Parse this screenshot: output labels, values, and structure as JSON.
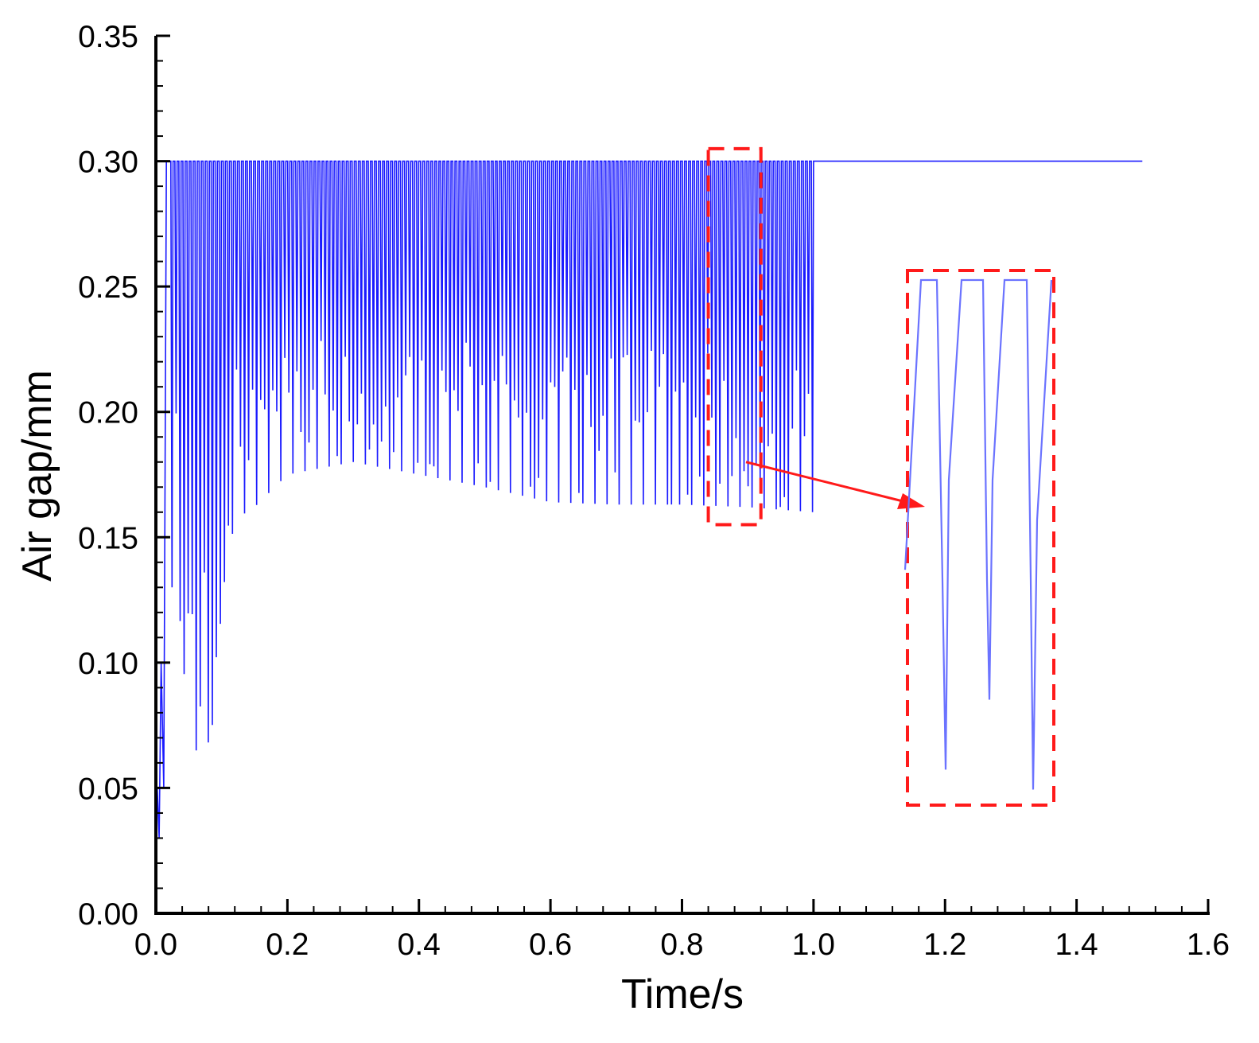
{
  "chart_data": {
    "type": "line",
    "title": "",
    "xlabel": "Time/s",
    "ylabel": "Air gap/mm",
    "xlim": [
      0.0,
      1.6
    ],
    "ylim": [
      0.0,
      0.35
    ],
    "x_ticks": [
      "0.0",
      "0.2",
      "0.4",
      "0.6",
      "0.8",
      "1.0",
      "1.2",
      "1.4",
      "1.6"
    ],
    "y_ticks": [
      "0.00",
      "0.05",
      "0.10",
      "0.15",
      "0.20",
      "0.25",
      "0.30",
      "0.35"
    ],
    "grid": false,
    "legend": "none",
    "series_color": "#1a1aff",
    "highlight_color": "#ff1a1a",
    "series": [
      {
        "oscillation_start": 0.02,
        "oscillation_end": 1.0,
        "upper_level": 0.3,
        "final_value": 0.3,
        "end_time": 1.5,
        "initial_points": [
          [
            0.0,
            0.03
          ],
          [
            0.002,
            0.05
          ],
          [
            0.005,
            0.03
          ],
          [
            0.008,
            0.1
          ],
          [
            0.012,
            0.05
          ],
          [
            0.016,
            0.3
          ]
        ],
        "dips": [
          {
            "t": 0.03,
            "min": 0.13
          },
          {
            "t": 0.045,
            "min": 0.09
          },
          {
            "t": 0.06,
            "min": 0.065
          },
          {
            "t": 0.075,
            "min": 0.065
          },
          {
            "t": 0.09,
            "min": 0.075
          },
          {
            "t": 0.1,
            "min": 0.125
          },
          {
            "t": 0.12,
            "min": 0.157
          },
          {
            "t": 0.15,
            "min": 0.162
          },
          {
            "t": 0.2,
            "min": 0.175
          },
          {
            "t": 0.3,
            "min": 0.18
          },
          {
            "t": 0.4,
            "min": 0.175
          },
          {
            "t": 0.5,
            "min": 0.17
          },
          {
            "t": 0.6,
            "min": 0.164
          },
          {
            "t": 0.7,
            "min": 0.163
          },
          {
            "t": 0.8,
            "min": 0.163
          },
          {
            "t": 0.9,
            "min": 0.162
          },
          {
            "t": 1.0,
            "min": 0.16
          }
        ]
      }
    ],
    "annotation": {
      "zoom_region_x": [
        0.84,
        0.92
      ],
      "zoom_region_y": [
        0.155,
        0.305
      ],
      "inset_upper": 0.3,
      "inset_dips": [
        0.055,
        0.09,
        0.045
      ]
    }
  }
}
